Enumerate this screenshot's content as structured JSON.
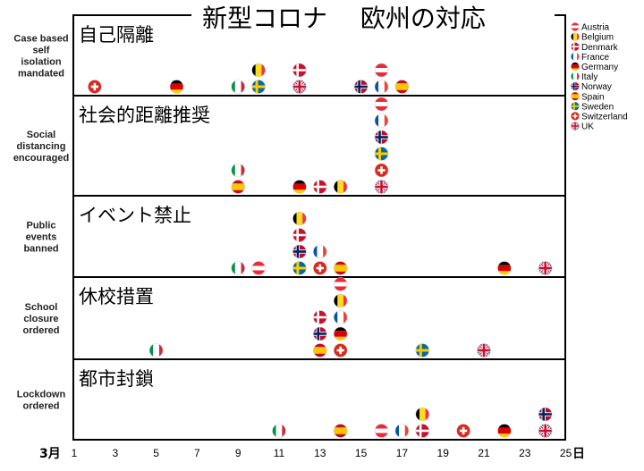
{
  "chart_data": {
    "type": "scatter",
    "title": "新型コロナ　 欧州の対応",
    "x_prefix": "3月",
    "x_suffix": "日",
    "xlim": [
      1,
      25
    ],
    "x_ticks": [
      1,
      3,
      5,
      7,
      9,
      11,
      13,
      15,
      17,
      19,
      21,
      23,
      25
    ],
    "countries": [
      {
        "name": "Austria",
        "flag": "austria"
      },
      {
        "name": "Belgium",
        "flag": "belgium"
      },
      {
        "name": "Denmark",
        "flag": "denmark"
      },
      {
        "name": "France",
        "flag": "france"
      },
      {
        "name": "Germany",
        "flag": "germany"
      },
      {
        "name": "Italy",
        "flag": "italy"
      },
      {
        "name": "Norway",
        "flag": "norway"
      },
      {
        "name": "Spain",
        "flag": "spain"
      },
      {
        "name": "Sweden",
        "flag": "sweden"
      },
      {
        "name": "Switzerland",
        "flag": "switzerland"
      },
      {
        "name": "UK",
        "flag": "uk"
      }
    ],
    "rows": [
      {
        "label": [
          "Case based",
          "self",
          "isolation",
          "mandated"
        ],
        "title": "自己隔離",
        "points": [
          {
            "day": 2,
            "stack": [
              {
                "country": "Switzerland",
                "flag": "switzerland"
              }
            ]
          },
          {
            "day": 6,
            "stack": [
              {
                "country": "Germany",
                "flag": "germany"
              }
            ]
          },
          {
            "day": 9,
            "stack": [
              {
                "country": "Italy",
                "flag": "italy"
              }
            ]
          },
          {
            "day": 10,
            "stack": [
              {
                "country": "Sweden",
                "flag": "sweden"
              },
              {
                "country": "Belgium",
                "flag": "belgium"
              }
            ]
          },
          {
            "day": 12,
            "stack": [
              {
                "country": "UK",
                "flag": "uk"
              },
              {
                "country": "Denmark",
                "flag": "denmark"
              }
            ]
          },
          {
            "day": 15,
            "stack": [
              {
                "country": "Norway",
                "flag": "norway"
              }
            ]
          },
          {
            "day": 16,
            "stack": [
              {
                "country": "France",
                "flag": "france"
              },
              {
                "country": "Austria",
                "flag": "austria"
              }
            ]
          },
          {
            "day": 17,
            "stack": [
              {
                "country": "Spain",
                "flag": "spain"
              }
            ]
          }
        ]
      },
      {
        "label": [
          "Social",
          "distancing",
          "encouraged"
        ],
        "title": "社会的距離推奨",
        "points": [
          {
            "day": 9,
            "stack": [
              {
                "country": "Spain",
                "flag": "spain"
              },
              {
                "country": "Italy",
                "flag": "italy"
              }
            ]
          },
          {
            "day": 12,
            "stack": [
              {
                "country": "Germany",
                "flag": "germany"
              }
            ]
          },
          {
            "day": 13,
            "stack": [
              {
                "country": "Denmark",
                "flag": "denmark"
              }
            ]
          },
          {
            "day": 14,
            "stack": [
              {
                "country": "Belgium",
                "flag": "belgium"
              }
            ]
          },
          {
            "day": 16,
            "stack": [
              {
                "country": "UK",
                "flag": "uk"
              },
              {
                "country": "Switzerland",
                "flag": "switzerland"
              },
              {
                "country": "Sweden",
                "flag": "sweden"
              },
              {
                "country": "Norway",
                "flag": "norway"
              },
              {
                "country": "France",
                "flag": "france"
              },
              {
                "country": "Austria",
                "flag": "austria"
              }
            ]
          }
        ]
      },
      {
        "label": [
          "Public",
          "events",
          "banned"
        ],
        "title": "イベント禁止",
        "points": [
          {
            "day": 9,
            "stack": [
              {
                "country": "Italy",
                "flag": "italy"
              }
            ]
          },
          {
            "day": 10,
            "stack": [
              {
                "country": "Austria",
                "flag": "austria"
              }
            ]
          },
          {
            "day": 12,
            "stack": [
              {
                "country": "Sweden",
                "flag": "sweden"
              },
              {
                "country": "Norway",
                "flag": "norway"
              },
              {
                "country": "Denmark",
                "flag": "denmark"
              },
              {
                "country": "Belgium",
                "flag": "belgium"
              }
            ]
          },
          {
            "day": 13,
            "stack": [
              {
                "country": "Switzerland",
                "flag": "switzerland"
              },
              {
                "country": "France",
                "flag": "france"
              }
            ]
          },
          {
            "day": 14,
            "stack": [
              {
                "country": "Spain",
                "flag": "spain"
              }
            ]
          },
          {
            "day": 22,
            "stack": [
              {
                "country": "Germany",
                "flag": "germany"
              }
            ]
          },
          {
            "day": 24,
            "stack": [
              {
                "country": "UK",
                "flag": "uk"
              }
            ]
          }
        ]
      },
      {
        "label": [
          "School",
          "closure",
          "ordered"
        ],
        "title": "休校措置",
        "points": [
          {
            "day": 5,
            "stack": [
              {
                "country": "Italy",
                "flag": "italy"
              }
            ]
          },
          {
            "day": 13,
            "stack": [
              {
                "country": "Spain",
                "flag": "spain"
              },
              {
                "country": "Norway",
                "flag": "norway"
              },
              {
                "country": "Denmark",
                "flag": "denmark"
              }
            ]
          },
          {
            "day": 14,
            "stack": [
              {
                "country": "Switzerland",
                "flag": "switzerland"
              },
              {
                "country": "Germany",
                "flag": "germany"
              },
              {
                "country": "France",
                "flag": "france"
              },
              {
                "country": "Belgium",
                "flag": "belgium"
              },
              {
                "country": "Austria",
                "flag": "austria"
              }
            ]
          },
          {
            "day": 18,
            "stack": [
              {
                "country": "Sweden",
                "flag": "sweden"
              }
            ]
          },
          {
            "day": 21,
            "stack": [
              {
                "country": "UK",
                "flag": "uk"
              }
            ]
          }
        ]
      },
      {
        "label": [
          "Lockdown",
          "ordered"
        ],
        "title": "都市封鎖",
        "points": [
          {
            "day": 11,
            "stack": [
              {
                "country": "Italy",
                "flag": "italy"
              }
            ]
          },
          {
            "day": 14,
            "stack": [
              {
                "country": "Spain",
                "flag": "spain"
              }
            ]
          },
          {
            "day": 16,
            "stack": [
              {
                "country": "Austria",
                "flag": "austria"
              }
            ]
          },
          {
            "day": 17,
            "stack": [
              {
                "country": "France",
                "flag": "france"
              }
            ]
          },
          {
            "day": 18,
            "stack": [
              {
                "country": "Denmark",
                "flag": "denmark"
              },
              {
                "country": "Belgium",
                "flag": "belgium"
              }
            ]
          },
          {
            "day": 20,
            "stack": [
              {
                "country": "Switzerland",
                "flag": "switzerland"
              }
            ]
          },
          {
            "day": 22,
            "stack": [
              {
                "country": "Germany",
                "flag": "germany"
              }
            ]
          },
          {
            "day": 24,
            "stack": [
              {
                "country": "UK",
                "flag": "uk"
              },
              {
                "country": "Norway",
                "flag": "norway"
              }
            ]
          }
        ]
      }
    ]
  }
}
